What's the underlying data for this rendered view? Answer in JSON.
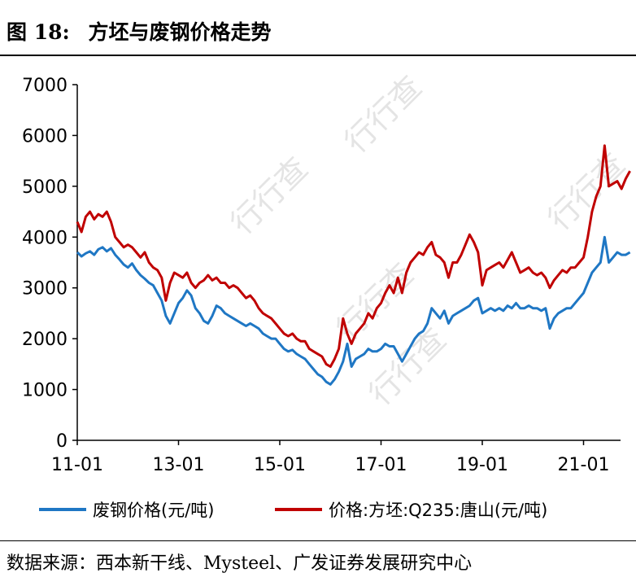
{
  "header": {
    "figure_label": "图 18:",
    "title_text": "方坯与废钢价格走势"
  },
  "footer": {
    "source": "数据来源：西本新干线、Mysteel、广发证券发展研究中心"
  },
  "watermark": {
    "text": "行行查"
  },
  "chart_data": {
    "type": "line",
    "title": "方坯与废钢价格走势",
    "ylim": [
      0,
      7000
    ],
    "yticks": [
      0,
      1000,
      2000,
      3000,
      4000,
      5000,
      6000,
      7000
    ],
    "xticks": [
      "11-01",
      "13-01",
      "15-01",
      "17-01",
      "19-01",
      "21-01"
    ],
    "x_unit": "months since 2011-01",
    "grid": false,
    "legend_position": "bottom",
    "colors": {
      "scrap": "#1f77c4",
      "billet": "#c00000"
    },
    "series": [
      {
        "name": "废钢价格(元/吨)",
        "color": "#1f77c4",
        "points": [
          [
            0,
            3700
          ],
          [
            1,
            3620
          ],
          [
            2,
            3680
          ],
          [
            3,
            3720
          ],
          [
            4,
            3650
          ],
          [
            5,
            3760
          ],
          [
            6,
            3800
          ],
          [
            7,
            3720
          ],
          [
            8,
            3780
          ],
          [
            9,
            3650
          ],
          [
            10,
            3560
          ],
          [
            11,
            3460
          ],
          [
            12,
            3400
          ],
          [
            13,
            3480
          ],
          [
            14,
            3350
          ],
          [
            15,
            3250
          ],
          [
            16,
            3180
          ],
          [
            17,
            3100
          ],
          [
            18,
            3050
          ],
          [
            19,
            2900
          ],
          [
            20,
            2750
          ],
          [
            21,
            2450
          ],
          [
            22,
            2300
          ],
          [
            23,
            2500
          ],
          [
            24,
            2700
          ],
          [
            25,
            2800
          ],
          [
            26,
            2950
          ],
          [
            27,
            2850
          ],
          [
            28,
            2600
          ],
          [
            29,
            2500
          ],
          [
            30,
            2350
          ],
          [
            31,
            2300
          ],
          [
            32,
            2450
          ],
          [
            33,
            2650
          ],
          [
            34,
            2600
          ],
          [
            35,
            2500
          ],
          [
            36,
            2450
          ],
          [
            37,
            2400
          ],
          [
            38,
            2350
          ],
          [
            39,
            2300
          ],
          [
            40,
            2250
          ],
          [
            41,
            2300
          ],
          [
            42,
            2250
          ],
          [
            43,
            2200
          ],
          [
            44,
            2100
          ],
          [
            45,
            2050
          ],
          [
            46,
            2000
          ],
          [
            47,
            2000
          ],
          [
            48,
            1900
          ],
          [
            49,
            1800
          ],
          [
            50,
            1750
          ],
          [
            51,
            1780
          ],
          [
            52,
            1700
          ],
          [
            53,
            1650
          ],
          [
            54,
            1600
          ],
          [
            55,
            1500
          ],
          [
            56,
            1400
          ],
          [
            57,
            1300
          ],
          [
            58,
            1250
          ],
          [
            59,
            1150
          ],
          [
            60,
            1100
          ],
          [
            61,
            1200
          ],
          [
            62,
            1350
          ],
          [
            63,
            1550
          ],
          [
            64,
            1900
          ],
          [
            65,
            1450
          ],
          [
            66,
            1600
          ],
          [
            67,
            1650
          ],
          [
            68,
            1700
          ],
          [
            69,
            1800
          ],
          [
            70,
            1750
          ],
          [
            71,
            1750
          ],
          [
            72,
            1800
          ],
          [
            73,
            1900
          ],
          [
            74,
            1850
          ],
          [
            75,
            1850
          ],
          [
            76,
            1700
          ],
          [
            77,
            1550
          ],
          [
            78,
            1700
          ],
          [
            79,
            1850
          ],
          [
            80,
            2000
          ],
          [
            81,
            2100
          ],
          [
            82,
            2150
          ],
          [
            83,
            2300
          ],
          [
            84,
            2600
          ],
          [
            85,
            2500
          ],
          [
            86,
            2400
          ],
          [
            87,
            2550
          ],
          [
            88,
            2300
          ],
          [
            89,
            2450
          ],
          [
            90,
            2500
          ],
          [
            91,
            2550
          ],
          [
            92,
            2600
          ],
          [
            93,
            2650
          ],
          [
            94,
            2750
          ],
          [
            95,
            2800
          ],
          [
            96,
            2500
          ],
          [
            97,
            2550
          ],
          [
            98,
            2600
          ],
          [
            99,
            2550
          ],
          [
            100,
            2600
          ],
          [
            101,
            2550
          ],
          [
            102,
            2650
          ],
          [
            103,
            2600
          ],
          [
            104,
            2700
          ],
          [
            105,
            2600
          ],
          [
            106,
            2600
          ],
          [
            107,
            2650
          ],
          [
            108,
            2600
          ],
          [
            109,
            2600
          ],
          [
            110,
            2550
          ],
          [
            111,
            2600
          ],
          [
            112,
            2200
          ],
          [
            113,
            2400
          ],
          [
            114,
            2500
          ],
          [
            115,
            2550
          ],
          [
            116,
            2600
          ],
          [
            117,
            2600
          ],
          [
            118,
            2700
          ],
          [
            119,
            2800
          ],
          [
            120,
            2900
          ],
          [
            121,
            3100
          ],
          [
            122,
            3300
          ],
          [
            123,
            3400
          ],
          [
            124,
            3500
          ],
          [
            125,
            4000
          ],
          [
            126,
            3500
          ],
          [
            127,
            3600
          ],
          [
            128,
            3700
          ],
          [
            129,
            3650
          ],
          [
            130,
            3650
          ],
          [
            131,
            3700
          ]
        ]
      },
      {
        "name": "价格:方坯:Q235:唐山(元/吨)",
        "color": "#c00000",
        "points": [
          [
            0,
            4300
          ],
          [
            1,
            4100
          ],
          [
            2,
            4400
          ],
          [
            3,
            4500
          ],
          [
            4,
            4350
          ],
          [
            5,
            4450
          ],
          [
            6,
            4400
          ],
          [
            7,
            4500
          ],
          [
            8,
            4300
          ],
          [
            9,
            4000
          ],
          [
            10,
            3900
          ],
          [
            11,
            3800
          ],
          [
            12,
            3850
          ],
          [
            13,
            3800
          ],
          [
            14,
            3700
          ],
          [
            15,
            3600
          ],
          [
            16,
            3700
          ],
          [
            17,
            3500
          ],
          [
            18,
            3400
          ],
          [
            19,
            3350
          ],
          [
            20,
            3200
          ],
          [
            21,
            2750
          ],
          [
            22,
            3100
          ],
          [
            23,
            3300
          ],
          [
            24,
            3250
          ],
          [
            25,
            3200
          ],
          [
            26,
            3300
          ],
          [
            27,
            3100
          ],
          [
            28,
            3000
          ],
          [
            29,
            3100
          ],
          [
            30,
            3150
          ],
          [
            31,
            3250
          ],
          [
            32,
            3150
          ],
          [
            33,
            3200
          ],
          [
            34,
            3100
          ],
          [
            35,
            3100
          ],
          [
            36,
            3000
          ],
          [
            37,
            3050
          ],
          [
            38,
            3000
          ],
          [
            39,
            2900
          ],
          [
            40,
            2800
          ],
          [
            41,
            2850
          ],
          [
            42,
            2750
          ],
          [
            43,
            2600
          ],
          [
            44,
            2500
          ],
          [
            45,
            2450
          ],
          [
            46,
            2400
          ],
          [
            47,
            2300
          ],
          [
            48,
            2200
          ],
          [
            49,
            2100
          ],
          [
            50,
            2050
          ],
          [
            51,
            2100
          ],
          [
            52,
            2000
          ],
          [
            53,
            1950
          ],
          [
            54,
            1950
          ],
          [
            55,
            1800
          ],
          [
            56,
            1750
          ],
          [
            57,
            1700
          ],
          [
            58,
            1650
          ],
          [
            59,
            1500
          ],
          [
            60,
            1450
          ],
          [
            61,
            1600
          ],
          [
            62,
            1800
          ],
          [
            63,
            2400
          ],
          [
            64,
            2100
          ],
          [
            65,
            1900
          ],
          [
            66,
            2100
          ],
          [
            67,
            2200
          ],
          [
            68,
            2300
          ],
          [
            69,
            2500
          ],
          [
            70,
            2400
          ],
          [
            71,
            2600
          ],
          [
            72,
            2700
          ],
          [
            73,
            2900
          ],
          [
            74,
            3050
          ],
          [
            75,
            2900
          ],
          [
            76,
            3200
          ],
          [
            77,
            2900
          ],
          [
            78,
            3300
          ],
          [
            79,
            3500
          ],
          [
            80,
            3600
          ],
          [
            81,
            3700
          ],
          [
            82,
            3650
          ],
          [
            83,
            3800
          ],
          [
            84,
            3900
          ],
          [
            85,
            3650
          ],
          [
            86,
            3600
          ],
          [
            87,
            3500
          ],
          [
            88,
            3200
          ],
          [
            89,
            3500
          ],
          [
            90,
            3500
          ],
          [
            91,
            3650
          ],
          [
            92,
            3850
          ],
          [
            93,
            4050
          ],
          [
            94,
            3900
          ],
          [
            95,
            3700
          ],
          [
            96,
            3050
          ],
          [
            97,
            3350
          ],
          [
            98,
            3400
          ],
          [
            99,
            3450
          ],
          [
            100,
            3500
          ],
          [
            101,
            3400
          ],
          [
            102,
            3550
          ],
          [
            103,
            3700
          ],
          [
            104,
            3500
          ],
          [
            105,
            3300
          ],
          [
            106,
            3350
          ],
          [
            107,
            3400
          ],
          [
            108,
            3300
          ],
          [
            109,
            3250
          ],
          [
            110,
            3300
          ],
          [
            111,
            3200
          ],
          [
            112,
            3000
          ],
          [
            113,
            3150
          ],
          [
            114,
            3250
          ],
          [
            115,
            3350
          ],
          [
            116,
            3300
          ],
          [
            117,
            3400
          ],
          [
            118,
            3400
          ],
          [
            119,
            3500
          ],
          [
            120,
            3600
          ],
          [
            121,
            4000
          ],
          [
            122,
            4500
          ],
          [
            123,
            4800
          ],
          [
            124,
            5000
          ],
          [
            125,
            5800
          ],
          [
            126,
            5000
          ],
          [
            127,
            5050
          ],
          [
            128,
            5100
          ],
          [
            129,
            4950
          ],
          [
            130,
            5150
          ],
          [
            131,
            5300
          ]
        ]
      }
    ]
  }
}
